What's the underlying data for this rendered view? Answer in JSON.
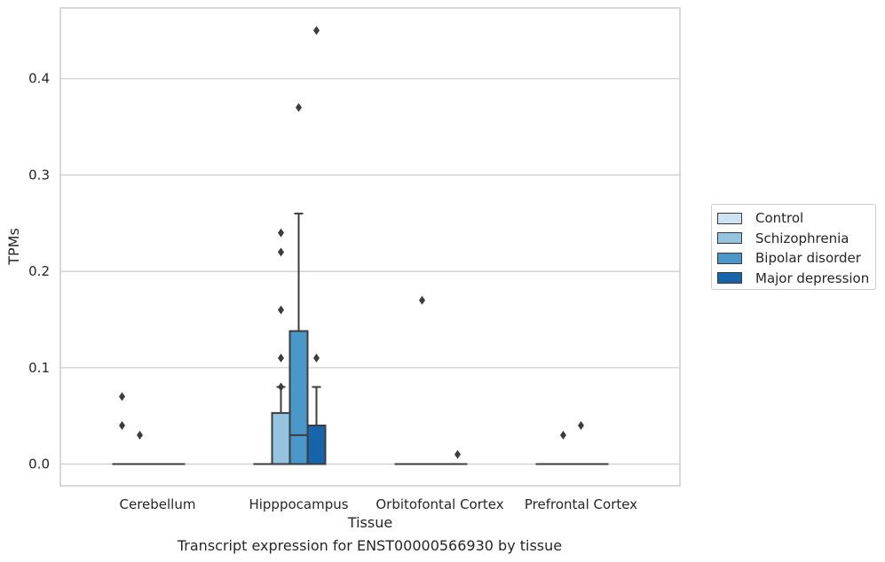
{
  "chart_data": {
    "type": "box",
    "caption": "Transcript expression for ENST00000566930 by tissue",
    "xlabel": "Tissue",
    "ylabel": "TPMs",
    "ylim": [
      -0.022,
      0.474
    ],
    "yticks": [
      "0.0",
      "0.1",
      "0.2",
      "0.3",
      "0.4"
    ],
    "ytick_values": [
      0.0,
      0.1,
      0.2,
      0.3,
      0.4
    ],
    "grid": "horizontal",
    "legend_position": "right",
    "categories": [
      "Cerebellum",
      "Hipppocampus",
      "Orbitofontal Cortex",
      "Prefrontal Cortex"
    ],
    "series": [
      {
        "name": "Control",
        "color": "#d0e1f2",
        "boxes": [
          {
            "q1": 0,
            "median": 0,
            "q3": 0,
            "whisker_low": 0,
            "whisker_high": 0,
            "outliers": [
              0.07,
              0.04
            ]
          },
          {
            "q1": 0,
            "median": 0,
            "q3": 0,
            "whisker_low": 0,
            "whisker_high": 0,
            "outliers": []
          },
          {
            "q1": 0,
            "median": 0,
            "q3": 0,
            "whisker_low": 0,
            "whisker_high": 0,
            "outliers": []
          },
          {
            "q1": 0,
            "median": 0,
            "q3": 0,
            "whisker_low": 0,
            "whisker_high": 0,
            "outliers": []
          }
        ]
      },
      {
        "name": "Schizophrenia",
        "color": "#94c4df",
        "boxes": [
          {
            "q1": 0,
            "median": 0,
            "q3": 0,
            "whisker_low": 0,
            "whisker_high": 0,
            "outliers": [
              0.03
            ]
          },
          {
            "q1": 0,
            "median": 0,
            "q3": 0.053,
            "whisker_low": 0,
            "whisker_high": 0.08,
            "outliers": [
              0.24,
              0.22,
              0.16,
              0.11,
              0.08
            ]
          },
          {
            "q1": 0,
            "median": 0,
            "q3": 0,
            "whisker_low": 0,
            "whisker_high": 0,
            "outliers": [
              0.17
            ]
          },
          {
            "q1": 0,
            "median": 0,
            "q3": 0,
            "whisker_low": 0,
            "whisker_high": 0,
            "outliers": [
              0.03
            ]
          }
        ]
      },
      {
        "name": "Bipolar disorder",
        "color": "#4a98c9",
        "boxes": [
          {
            "q1": 0,
            "median": 0,
            "q3": 0,
            "whisker_low": 0,
            "whisker_high": 0,
            "outliers": []
          },
          {
            "q1": 0,
            "median": 0.03,
            "q3": 0.138,
            "whisker_low": 0,
            "whisker_high": 0.26,
            "outliers": [
              0.37
            ]
          },
          {
            "q1": 0,
            "median": 0,
            "q3": 0,
            "whisker_low": 0,
            "whisker_high": 0,
            "outliers": []
          },
          {
            "q1": 0,
            "median": 0,
            "q3": 0,
            "whisker_low": 0,
            "whisker_high": 0,
            "outliers": [
              0.04
            ]
          }
        ]
      },
      {
        "name": "Major depression",
        "color": "#1764ab",
        "boxes": [
          {
            "q1": 0,
            "median": 0,
            "q3": 0,
            "whisker_low": 0,
            "whisker_high": 0,
            "outliers": []
          },
          {
            "q1": 0,
            "median": 0,
            "q3": 0.04,
            "whisker_low": 0,
            "whisker_high": 0.08,
            "outliers": [
              0.45,
              0.11
            ]
          },
          {
            "q1": 0,
            "median": 0,
            "q3": 0,
            "whisker_low": 0,
            "whisker_high": 0,
            "outliers": [
              0.01
            ]
          },
          {
            "q1": 0,
            "median": 0,
            "q3": 0,
            "whisker_low": 0,
            "whisker_high": 0,
            "outliers": []
          }
        ]
      }
    ]
  }
}
